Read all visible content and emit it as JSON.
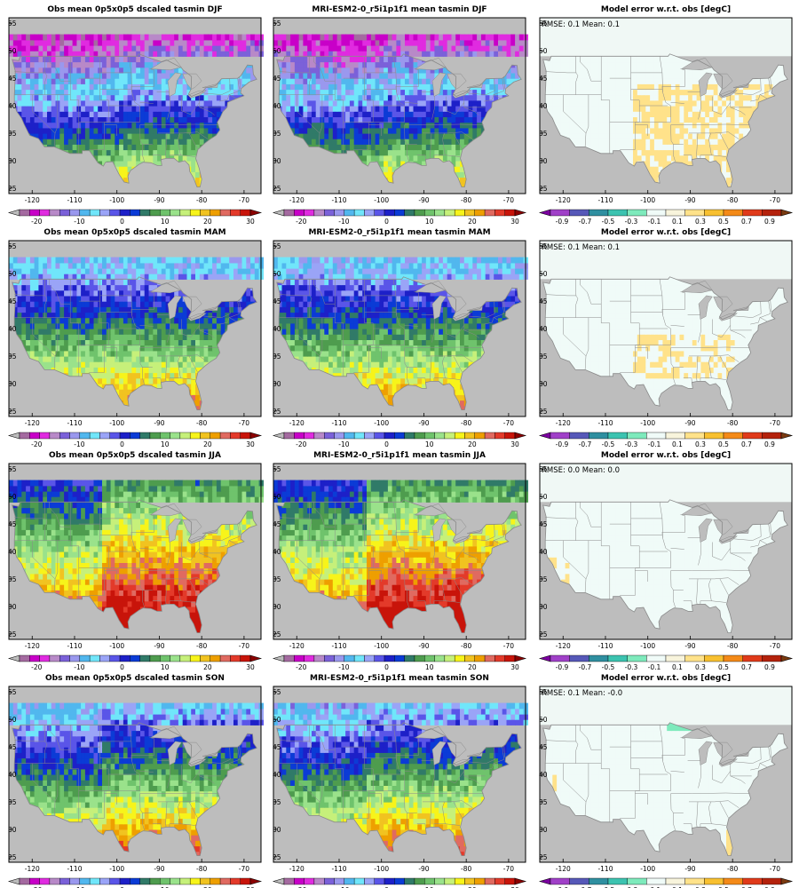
{
  "colors": {
    "land": "#f0f8f5",
    "ocean": "#bdbdbd",
    "border": "#8a8a8a",
    "frame": "#000000",
    "clim_scale": [
      "#bcbcbc",
      "#a46aa0",
      "#c800c8",
      "#e02be0",
      "#b889c8",
      "#7b61d9",
      "#9a98ee",
      "#51b7ee",
      "#70e6fa",
      "#9aa4f7",
      "#5a55e8",
      "#1d20c8",
      "#0b3bd6",
      "#307a68",
      "#4e9c4e",
      "#6fc36c",
      "#9ae28b",
      "#c6f07a",
      "#f7f41a",
      "#f1c320",
      "#ee9f00",
      "#e06a60",
      "#e33a2a",
      "#c8140a",
      "#8b0000"
    ],
    "err_scale": [
      "#7b00a0",
      "#a040c8",
      "#5658b8",
      "#2f8fa0",
      "#3cc3b0",
      "#7eeabc",
      "#f0fbf8",
      "#f8f4dc",
      "#ffe28a",
      "#f8c030",
      "#f48a18",
      "#e03a1a",
      "#b4220c",
      "#7a3a10"
    ]
  },
  "climate_colorbar": {
    "ticks": [
      "-20",
      "-10",
      "0",
      "10",
      "20",
      "30"
    ]
  },
  "error_colorbar": {
    "ticks": [
      "-0.9",
      "-0.7",
      "-0.5",
      "-0.3",
      "-0.1",
      "0.1",
      "0.3",
      "0.5",
      "0.7",
      "0.9"
    ]
  },
  "axes": {
    "lon_ticks": [
      "-120",
      "-110",
      "-100",
      "-90",
      "-80",
      "-70"
    ],
    "lat_ticks": [
      "25",
      "30",
      "35",
      "40",
      "45",
      "50",
      "55"
    ]
  },
  "rows": [
    {
      "season": "DJF",
      "obs_title": "Obs mean 0p5x0p5 dscaled tasmin DJF",
      "model_title": "MRI-ESM2-0_r5i1p1f1 mean tasmin DJF",
      "error_title": "Model error w.r.t. obs [degC]",
      "stats": "RMSE: 0.1  Mean: 0.1"
    },
    {
      "season": "MAM",
      "obs_title": "Obs mean 0p5x0p5 dscaled tasmin MAM",
      "model_title": "MRI-ESM2-0_r5i1p1f1 mean tasmin MAM",
      "error_title": "Model error w.r.t. obs [degC]",
      "stats": "RMSE: 0.1  Mean: 0.1"
    },
    {
      "season": "JJA",
      "obs_title": "Obs mean 0p5x0p5 dscaled tasmin JJA",
      "model_title": "MRI-ESM2-0_r5i1p1f1 mean tasmin JJA",
      "error_title": "Model error w.r.t. obs [degC]",
      "stats": "RMSE: 0.0  Mean: 0.0"
    },
    {
      "season": "SON",
      "obs_title": "Obs mean 0p5x0p5 dscaled tasmin SON",
      "model_title": "MRI-ESM2-0_r5i1p1f1 mean tasmin SON",
      "error_title": "Model error w.r.t. obs [degC]",
      "stats": "RMSE: 0.1  Mean: -0.0"
    }
  ]
}
